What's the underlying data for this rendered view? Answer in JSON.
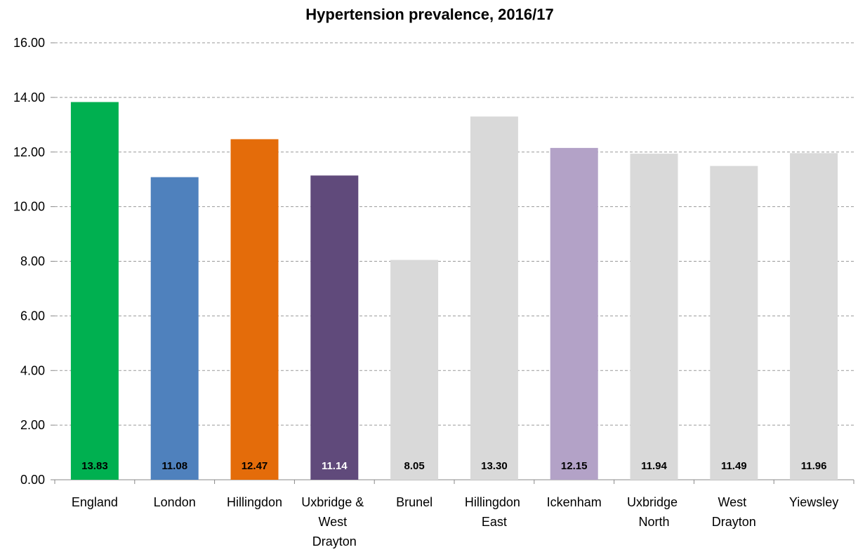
{
  "chart_data": {
    "type": "bar",
    "title": "Hypertension prevalence, 2016/17",
    "categories": [
      "England",
      "London",
      "Hillingdon",
      "Uxbridge & West Drayton",
      "Brunel",
      "Hillingdon East",
      "Ickenham",
      "Uxbridge North",
      "West Drayton",
      "Yiewsley"
    ],
    "values": [
      13.83,
      11.08,
      12.47,
      11.14,
      8.05,
      13.3,
      12.15,
      11.94,
      11.49,
      11.96
    ],
    "value_labels": [
      "13.83",
      "11.08",
      "12.47",
      "11.14",
      "8.05",
      "13.30",
      "12.15",
      "11.94",
      "11.49",
      "11.96"
    ],
    "colors": [
      "#00b050",
      "#4f81bd",
      "#e46c0a",
      "#604a7b",
      "#d9d9d9",
      "#d9d9d9",
      "#b3a2c7",
      "#d9d9d9",
      "#d9d9d9",
      "#d9d9d9"
    ],
    "ylim": [
      0,
      16
    ],
    "yticks": [
      {
        "value": 0,
        "label": "0.00"
      },
      {
        "value": 2,
        "label": "2.00"
      },
      {
        "value": 4,
        "label": "4.00"
      },
      {
        "value": 6,
        "label": "6.00"
      },
      {
        "value": 8,
        "label": "8.00"
      },
      {
        "value": 10,
        "label": "10.00"
      },
      {
        "value": 12,
        "label": "12.00"
      },
      {
        "value": 14,
        "label": "14.00"
      },
      {
        "value": 16,
        "label": "16.00"
      }
    ],
    "grid": true
  }
}
